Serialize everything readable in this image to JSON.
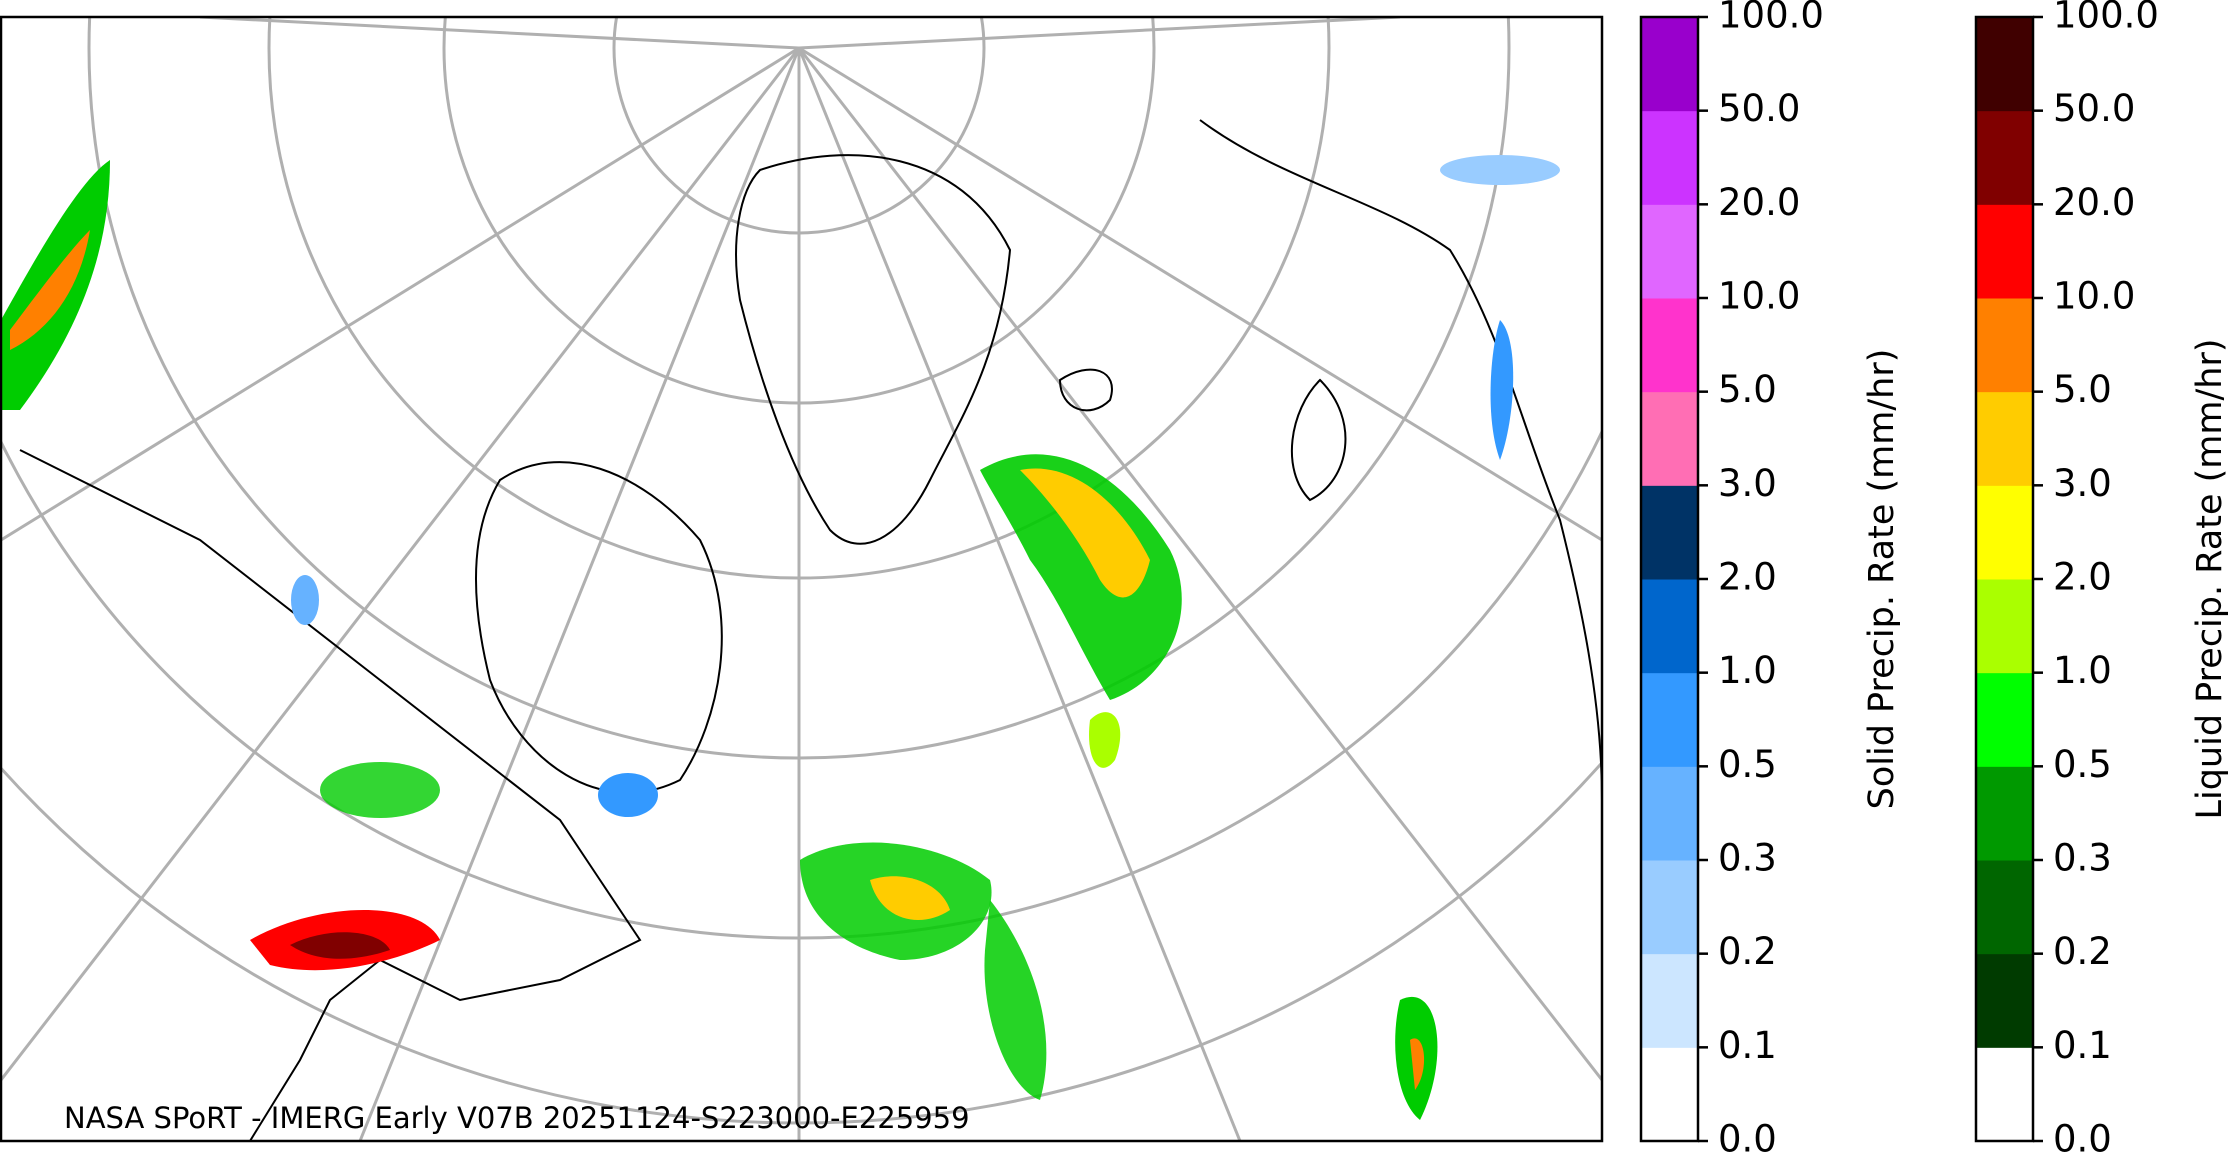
{
  "caption": "NASA SPoRT - IMERG Early V07B 20251124-S223000-E225959",
  "colorbars": [
    {
      "label": "Solid Precip. Rate (mm/hr)",
      "ticks": [
        "0.0",
        "0.1",
        "0.2",
        "0.3",
        "0.5",
        "1.0",
        "2.0",
        "3.0",
        "5.0",
        "10.0",
        "20.0",
        "50.0",
        "100.0"
      ],
      "colors": [
        "#ffffff",
        "#cce6ff",
        "#99ccff",
        "#66b2ff",
        "#3399ff",
        "#0066cc",
        "#003366",
        "#ff6eb4",
        "#ff33cc",
        "#e066ff",
        "#cc33ff",
        "#9900cc"
      ]
    },
    {
      "label": "Liquid Precip. Rate (mm/hr)",
      "ticks": [
        "0.0",
        "0.1",
        "0.2",
        "0.3",
        "0.5",
        "1.0",
        "2.0",
        "3.0",
        "5.0",
        "10.0",
        "20.0",
        "50.0",
        "100.0"
      ],
      "colors": [
        "#ffffff",
        "#003b00",
        "#006600",
        "#009900",
        "#00ff00",
        "#aaff00",
        "#ffff00",
        "#ffcc00",
        "#ff8000",
        "#ff0000",
        "#800000",
        "#400000"
      ]
    }
  ]
}
